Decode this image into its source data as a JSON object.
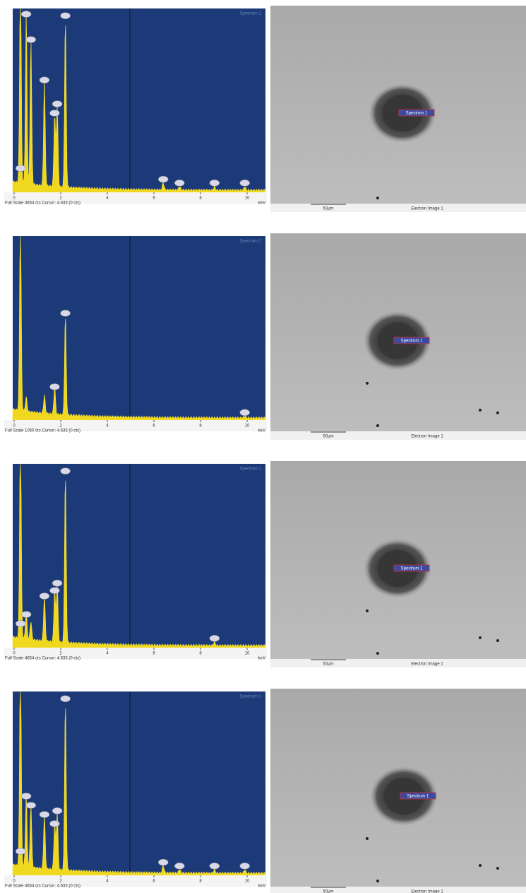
{
  "panels": [
    {
      "spectrum": {
        "label": "Spectrum 1",
        "xticks": [
          "0",
          "2",
          "4",
          "6",
          "8",
          "10"
        ],
        "unit": "keV",
        "footer": "Full Scale 4654 cts Cursor: 4.633 (0 cts)"
      },
      "image": {
        "marker": "Spectrum 1",
        "scale": "50µm",
        "caption": "Electron Image 1"
      }
    },
    {
      "spectrum": {
        "label": "Spectrum 1",
        "xticks": [
          "0",
          "2",
          "4",
          "6",
          "8",
          "10"
        ],
        "unit": "keV",
        "footer": "Full Scale 1050 cts Cursor: 4.633 (0 cts)"
      },
      "image": {
        "marker": "Spectrum 1",
        "scale": "50µm",
        "caption": "Electron Image 1"
      }
    },
    {
      "spectrum": {
        "label": "Spectrum 1",
        "xticks": [
          "0",
          "2",
          "4",
          "6",
          "8",
          "10"
        ],
        "unit": "keV",
        "footer": "Full Scale 4654 cts Cursor: 4.633 (0 cts)"
      },
      "image": {
        "marker": "Spectrum 1",
        "scale": "50µm",
        "caption": "Electron Image 1"
      }
    },
    {
      "spectrum": {
        "label": "Spectrum 1",
        "xticks": [
          "0",
          "2",
          "4",
          "6",
          "8",
          "10"
        ],
        "unit": "keV",
        "footer": "Full Scale 4654 cts Cursor: 4.633 (0 cts)"
      },
      "image": {
        "marker": "Spectrum 1",
        "scale": "50µm",
        "caption": "Electron Image 1"
      }
    }
  ]
}
